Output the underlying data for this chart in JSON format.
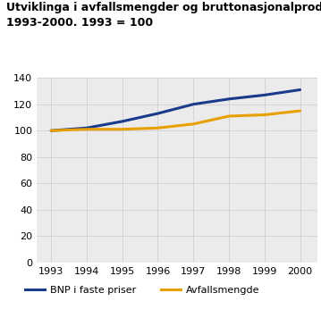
{
  "title_line1": "Utviklinga i avfallsmengder og bruttonasjonalprodukt.",
  "title_line2": "1993-2000. 1993 = 100",
  "years": [
    1993,
    1994,
    1995,
    1996,
    1997,
    1998,
    1999,
    2000
  ],
  "bnp": [
    100,
    102,
    107,
    113,
    120,
    124,
    127,
    131
  ],
  "avfall": [
    100,
    101,
    101,
    102,
    105,
    111,
    112,
    115
  ],
  "bnp_color": "#1a3a8c",
  "avfall_color": "#e8a000",
  "ylim": [
    0,
    140
  ],
  "yticks": [
    0,
    20,
    40,
    60,
    80,
    100,
    120,
    140
  ],
  "xtick_labels": [
    "1993",
    "1994",
    "1995",
    "1996",
    "1997",
    "1998",
    "1999",
    "2000"
  ],
  "legend_bnp": "BNP i faste priser",
  "legend_avfall": "Avfallsmengde",
  "grid_color": "#d0d0d0",
  "plot_bg_color": "#ebebeb",
  "fig_bg_color": "#ffffff",
  "title_color": "#000000",
  "line_width": 2.2,
  "title_fontsize": 9.0,
  "tick_fontsize": 8.0,
  "legend_fontsize": 8.0,
  "teal_color": "#7ecece",
  "xlim_left": 1992.6,
  "xlim_right": 2000.5
}
